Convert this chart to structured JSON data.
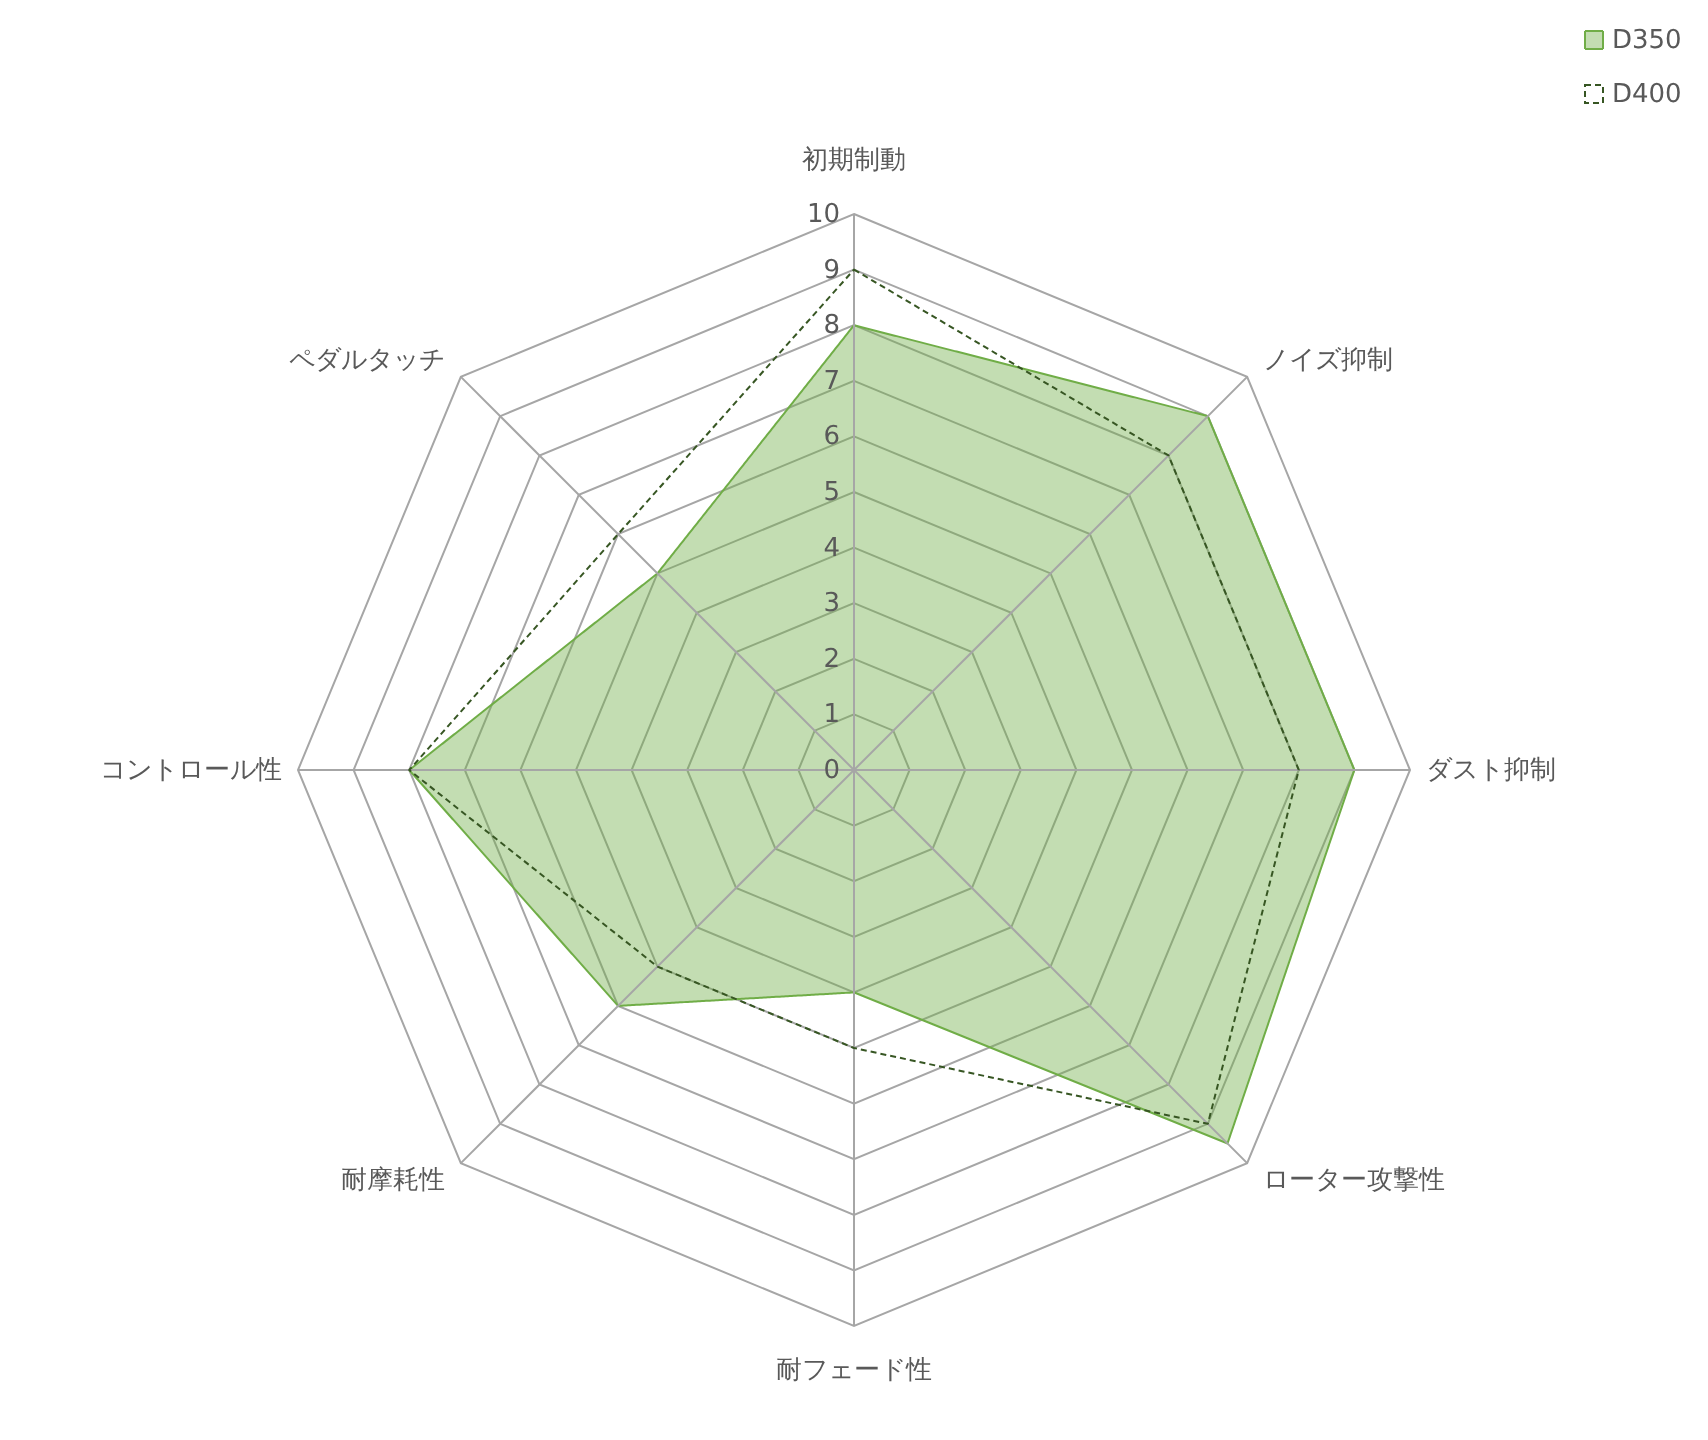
{
  "chart_data": {
    "type": "radar",
    "categories": [
      "初期制動",
      "ノイズ抑制",
      "ダスト抑制",
      "ローター攻撃性",
      "耐フェード性",
      "耐摩耗性",
      "コントロール性",
      "ペダルタッチ"
    ],
    "ylim": [
      0,
      10
    ],
    "yticks": [
      0,
      1,
      2,
      3,
      4,
      5,
      6,
      7,
      8,
      9,
      10
    ],
    "grid": true,
    "legend": "top right",
    "series": [
      {
        "name": "D350",
        "color": "#70ad47",
        "values": [
          8,
          9,
          9,
          9.5,
          4,
          6,
          8,
          5
        ]
      },
      {
        "name": "D400",
        "line_style": "dashed",
        "color": "#375623",
        "values": [
          9,
          8,
          8,
          9,
          5,
          5,
          8,
          6
        ]
      }
    ]
  }
}
